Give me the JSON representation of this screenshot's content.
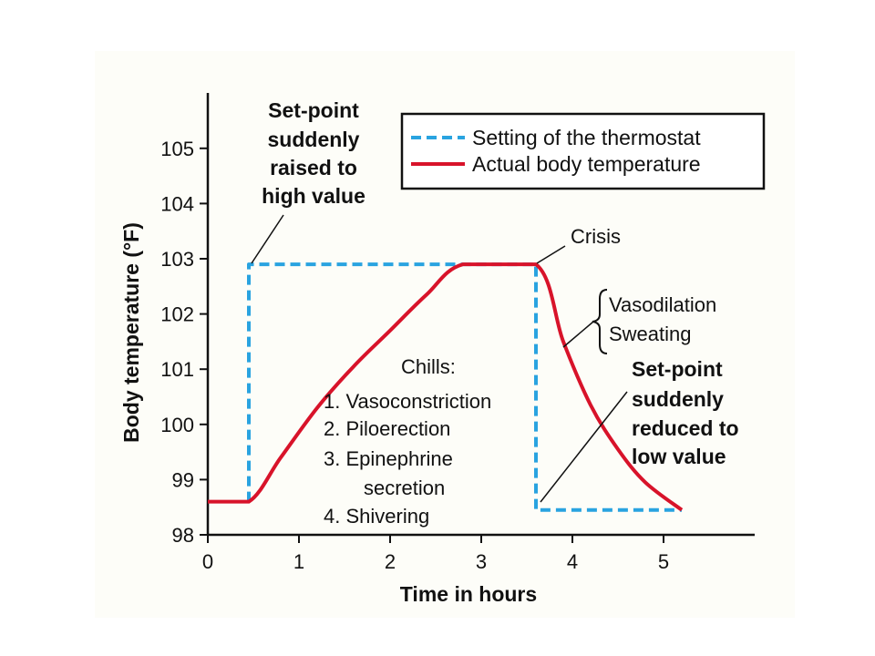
{
  "chart_data": {
    "type": "line",
    "title": "",
    "xlabel": "Time in hours",
    "ylabel": "Body temperature (°F)",
    "xlim": [
      0,
      6
    ],
    "ylim": [
      98,
      106
    ],
    "x_ticks": [
      "0",
      "1",
      "2",
      "3",
      "4",
      "5"
    ],
    "y_ticks": [
      "98",
      "99",
      "100",
      "101",
      "102",
      "103",
      "104",
      "105"
    ],
    "grid": false,
    "legend_position": "top-right",
    "series": [
      {
        "name": "Setting of the thermostat",
        "style": "dashed",
        "color": "#29a3e0",
        "points": [
          [
            0.45,
            98.6
          ],
          [
            0.45,
            102.9
          ],
          [
            3.6,
            102.9
          ],
          [
            3.6,
            98.45
          ],
          [
            5.2,
            98.45
          ]
        ]
      },
      {
        "name": "Actual body temperature",
        "style": "solid",
        "color": "#d8132a",
        "points": [
          [
            0,
            98.6
          ],
          [
            0.45,
            98.6
          ],
          [
            0.8,
            99.4
          ],
          [
            1.2,
            100.3
          ],
          [
            1.6,
            101.05
          ],
          [
            2.0,
            101.7
          ],
          [
            2.4,
            102.35
          ],
          [
            2.8,
            102.9
          ],
          [
            3.6,
            102.9
          ],
          [
            3.9,
            101.5
          ],
          [
            4.2,
            100.35
          ],
          [
            4.5,
            99.55
          ],
          [
            4.8,
            98.95
          ],
          [
            5.2,
            98.45
          ]
        ]
      }
    ],
    "annotations": {
      "setpoint_raised": [
        "Set-point",
        "suddenly",
        "raised to",
        "high value"
      ],
      "crisis": "Crisis",
      "vasodilation": [
        "Vasodilation",
        "Sweating"
      ],
      "chills": [
        "Chills:",
        "1. Vasoconstriction",
        "2. Piloerection",
        "3. Epinephrine",
        "secretion",
        "4. Shivering"
      ],
      "setpoint_reduced": [
        "Set-point",
        "suddenly",
        "reduced to",
        "low value"
      ]
    }
  }
}
